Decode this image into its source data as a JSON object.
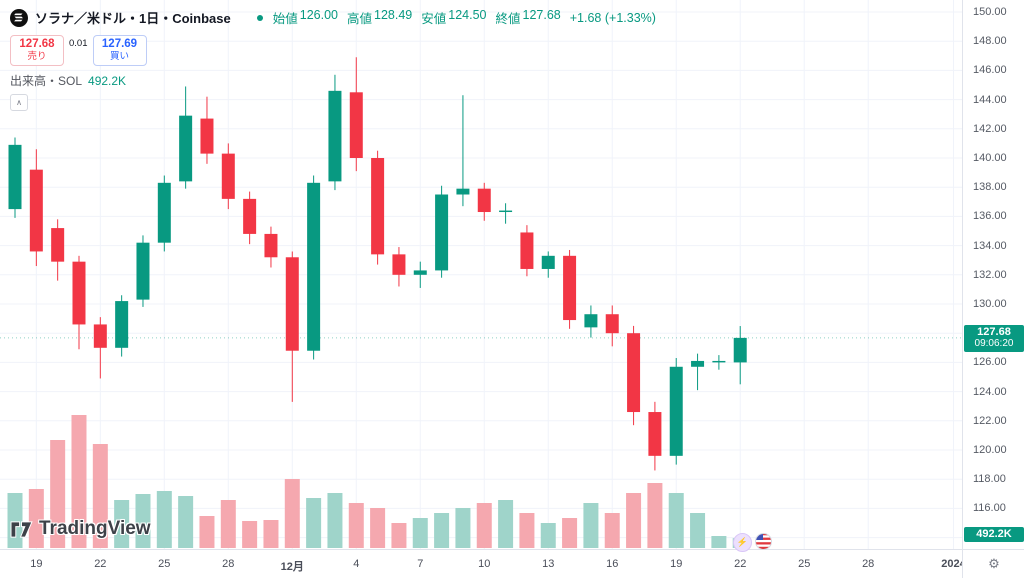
{
  "colors": {
    "up": "#089981",
    "down": "#f23645",
    "vol_up": "#9fd4ca",
    "vol_down": "#f5a8af",
    "buy": "#2962ff",
    "grid": "#f0f3fa",
    "axis_text": "#555a64"
  },
  "header": {
    "symbol_title": "ソラナ／米ドル・1日・Coinbase",
    "ohlc": {
      "open_label": "始値",
      "open_value": "126.00",
      "high_label": "高値",
      "high_value": "128.49",
      "low_label": "安値",
      "low_value": "124.50",
      "close_label": "終値",
      "close_value": "127.68",
      "change": "+1.68 (+1.33%)"
    },
    "trade": {
      "sell_price": "127.68",
      "sell_label": "売り",
      "spread": "0.01",
      "buy_price": "127.69",
      "buy_label": "買い"
    },
    "volume_row": {
      "label": "出来高・SOL",
      "value": "492.2K"
    }
  },
  "price_scale": {
    "current_price": "127.68",
    "countdown": "09:06:20",
    "volume_value": "492.2K"
  },
  "time_scale": {
    "labels": [
      {
        "text": "19",
        "i": 2
      },
      {
        "text": "22",
        "i": 5
      },
      {
        "text": "25",
        "i": 8
      },
      {
        "text": "28",
        "i": 11
      },
      {
        "text": "12月",
        "i": 14,
        "strong": true
      },
      {
        "text": "4",
        "i": 17
      },
      {
        "text": "7",
        "i": 20
      },
      {
        "text": "10",
        "i": 23
      },
      {
        "text": "13",
        "i": 26
      },
      {
        "text": "16",
        "i": 29
      },
      {
        "text": "19",
        "i": 32
      },
      {
        "text": "22",
        "i": 35
      },
      {
        "text": "25",
        "i": 38
      },
      {
        "text": "28",
        "i": 41
      },
      {
        "text": "2024",
        "i": 45,
        "strong": true
      }
    ]
  },
  "icons": {
    "gear": "⚙",
    "chevron_up": "∧",
    "lightning": "⚡"
  },
  "watermark": {
    "brand": "TradingView"
  },
  "chart_data": {
    "type": "candlestick",
    "symbol": "SOL/USD",
    "interval": "1日",
    "exchange": "Coinbase",
    "title": "ソラナ／米ドル・1日・Coinbase",
    "price_axis": {
      "min": 114,
      "max": 150,
      "step": 2
    },
    "volume_unit": "K",
    "current": {
      "price": 127.68,
      "countdown": "09:06:20",
      "volume_k": 492.2
    },
    "candles": [
      {
        "d": "11-18",
        "o": 136.5,
        "h": 141.4,
        "l": 135.9,
        "c": 140.9,
        "v": 2750
      },
      {
        "d": "11-19",
        "o": 139.2,
        "h": 140.6,
        "l": 132.6,
        "c": 133.6,
        "v": 2950
      },
      {
        "d": "11-20",
        "o": 135.2,
        "h": 135.8,
        "l": 131.6,
        "c": 132.9,
        "v": 5400
      },
      {
        "d": "11-21",
        "o": 132.9,
        "h": 133.3,
        "l": 126.9,
        "c": 128.6,
        "v": 6650
      },
      {
        "d": "11-22",
        "o": 128.6,
        "h": 129.1,
        "l": 124.9,
        "c": 127.0,
        "v": 5200
      },
      {
        "d": "11-23",
        "o": 127.0,
        "h": 130.6,
        "l": 126.4,
        "c": 130.2,
        "v": 2400
      },
      {
        "d": "11-24",
        "o": 130.3,
        "h": 134.7,
        "l": 129.8,
        "c": 134.2,
        "v": 2700
      },
      {
        "d": "11-25",
        "o": 134.2,
        "h": 138.8,
        "l": 133.6,
        "c": 138.3,
        "v": 2850
      },
      {
        "d": "11-26",
        "o": 138.4,
        "h": 144.9,
        "l": 137.9,
        "c": 142.9,
        "v": 2600
      },
      {
        "d": "11-27",
        "o": 142.7,
        "h": 144.2,
        "l": 139.6,
        "c": 140.3,
        "v": 1600
      },
      {
        "d": "11-28",
        "o": 140.3,
        "h": 141.0,
        "l": 136.5,
        "c": 137.2,
        "v": 2400
      },
      {
        "d": "11-29",
        "o": 137.2,
        "h": 137.7,
        "l": 134.1,
        "c": 134.8,
        "v": 1350
      },
      {
        "d": "11-30",
        "o": 134.8,
        "h": 135.3,
        "l": 132.5,
        "c": 133.2,
        "v": 1400
      },
      {
        "d": "12-01",
        "o": 133.2,
        "h": 133.6,
        "l": 123.3,
        "c": 126.8,
        "v": 3450
      },
      {
        "d": "12-02",
        "o": 126.8,
        "h": 138.8,
        "l": 126.2,
        "c": 138.3,
        "v": 2500
      },
      {
        "d": "12-03",
        "o": 138.4,
        "h": 145.7,
        "l": 137.8,
        "c": 144.6,
        "v": 2750
      },
      {
        "d": "12-04",
        "o": 144.5,
        "h": 146.9,
        "l": 139.1,
        "c": 140.0,
        "v": 2250
      },
      {
        "d": "12-05",
        "o": 140.0,
        "h": 140.5,
        "l": 132.7,
        "c": 133.4,
        "v": 2000
      },
      {
        "d": "12-06",
        "o": 133.4,
        "h": 133.9,
        "l": 131.2,
        "c": 132.0,
        "v": 1250
      },
      {
        "d": "12-07",
        "o": 132.0,
        "h": 132.9,
        "l": 131.1,
        "c": 132.3,
        "v": 1500
      },
      {
        "d": "12-08",
        "o": 132.3,
        "h": 138.1,
        "l": 131.8,
        "c": 137.5,
        "v": 1750
      },
      {
        "d": "12-09",
        "o": 137.5,
        "h": 144.3,
        "l": 136.7,
        "c": 137.9,
        "v": 2000
      },
      {
        "d": "12-10",
        "o": 137.9,
        "h": 138.3,
        "l": 135.7,
        "c": 136.3,
        "v": 2250
      },
      {
        "d": "12-11",
        "o": 136.3,
        "h": 136.9,
        "l": 135.5,
        "c": 136.4,
        "v": 2400
      },
      {
        "d": "12-12",
        "o": 134.9,
        "h": 135.4,
        "l": 131.9,
        "c": 132.4,
        "v": 1750
      },
      {
        "d": "12-13",
        "o": 132.4,
        "h": 133.6,
        "l": 131.8,
        "c": 133.3,
        "v": 1250
      },
      {
        "d": "12-14",
        "o": 133.3,
        "h": 133.7,
        "l": 128.3,
        "c": 128.9,
        "v": 1500
      },
      {
        "d": "12-15",
        "o": 128.4,
        "h": 129.9,
        "l": 127.7,
        "c": 129.3,
        "v": 2250
      },
      {
        "d": "12-16",
        "o": 129.3,
        "h": 129.9,
        "l": 127.1,
        "c": 128.0,
        "v": 1750
      },
      {
        "d": "12-17",
        "o": 128.0,
        "h": 128.5,
        "l": 121.7,
        "c": 122.6,
        "v": 2750
      },
      {
        "d": "12-18",
        "o": 122.6,
        "h": 123.3,
        "l": 118.6,
        "c": 119.6,
        "v": 3250
      },
      {
        "d": "12-19",
        "o": 119.6,
        "h": 126.3,
        "l": 119.0,
        "c": 125.7,
        "v": 2750
      },
      {
        "d": "12-20",
        "o": 125.7,
        "h": 126.6,
        "l": 124.1,
        "c": 126.1,
        "v": 1750
      },
      {
        "d": "12-21",
        "o": 126.0,
        "h": 126.5,
        "l": 125.5,
        "c": 126.1,
        "v": 600
      },
      {
        "d": "12-22",
        "o": 126.0,
        "h": 128.49,
        "l": 124.5,
        "c": 127.68,
        "v": 492.2
      }
    ]
  }
}
